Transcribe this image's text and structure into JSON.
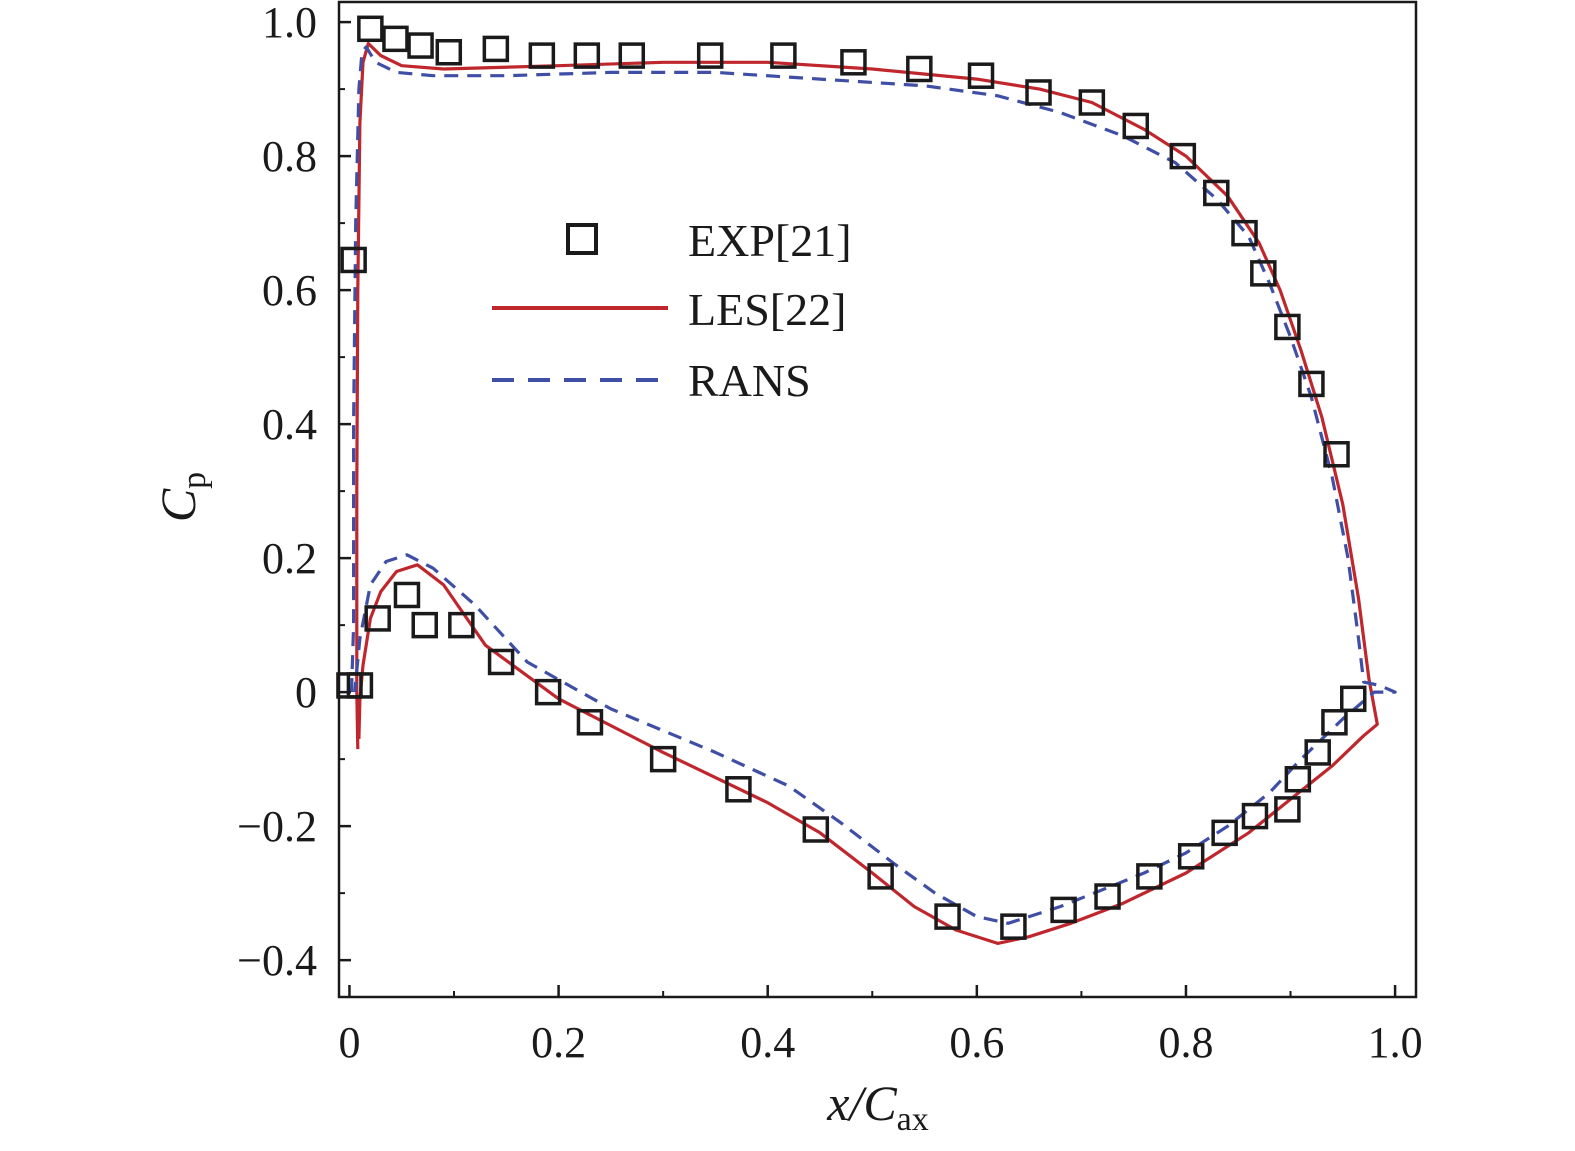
{
  "chart_data": {
    "type": "line",
    "xlabel": {
      "main": "x/C",
      "sub": "ax"
    },
    "ylabel": {
      "main": "C",
      "sub": "p"
    },
    "xlim": [
      -0.01,
      1.02
    ],
    "ylim": [
      -0.455,
      1.03
    ],
    "xticks": [
      0,
      0.2,
      0.4,
      0.6,
      0.8,
      1.0
    ],
    "xtick_labels": [
      "0",
      "0.2",
      "0.4",
      "0.6",
      "0.8",
      "1.0"
    ],
    "yticks": [
      -0.4,
      -0.2,
      0,
      0.2,
      0.4,
      0.6,
      0.8,
      1.0
    ],
    "ytick_labels": [
      "−0.4",
      "−0.2",
      "0",
      "0.2",
      "0.4",
      "0.6",
      "0.8",
      "1.0"
    ],
    "grid": false,
    "legend_position": "upper-center",
    "legend": [
      {
        "name": "EXP[21]",
        "style": "square-marker"
      },
      {
        "name": "LES[22]",
        "style": "solid-line"
      },
      {
        "name": "RANS",
        "style": "dashed-line"
      }
    ],
    "colors": {
      "exp": "#1a1a1a",
      "les": "#c0272d",
      "rans": "#3f4fa6",
      "axes": "#1a1a1a"
    },
    "series": [
      {
        "name": "EXP[21]",
        "kind": "scatter",
        "points": [
          [
            0.02,
            0.99
          ],
          [
            0.044,
            0.975
          ],
          [
            0.068,
            0.965
          ],
          [
            0.095,
            0.955
          ],
          [
            0.14,
            0.96
          ],
          [
            0.184,
            0.95
          ],
          [
            0.227,
            0.95
          ],
          [
            0.27,
            0.95
          ],
          [
            0.345,
            0.95
          ],
          [
            0.415,
            0.95
          ],
          [
            0.482,
            0.94
          ],
          [
            0.545,
            0.93
          ],
          [
            0.604,
            0.92
          ],
          [
            0.659,
            0.895
          ],
          [
            0.71,
            0.88
          ],
          [
            0.752,
            0.845
          ],
          [
            0.797,
            0.8
          ],
          [
            0.829,
            0.745
          ],
          [
            0.856,
            0.685
          ],
          [
            0.874,
            0.625
          ],
          [
            0.897,
            0.545
          ],
          [
            0.92,
            0.46
          ],
          [
            0.944,
            0.355
          ],
          [
            0.004,
            0.645
          ],
          [
            0.0,
            0.01
          ],
          [
            0.01,
            0.01
          ],
          [
            0.027,
            0.11
          ],
          [
            0.055,
            0.145
          ],
          [
            0.072,
            0.1
          ],
          [
            0.107,
            0.1
          ],
          [
            0.145,
            0.045
          ],
          [
            0.19,
            0.0
          ],
          [
            0.23,
            -0.045
          ],
          [
            0.3,
            -0.1
          ],
          [
            0.372,
            -0.145
          ],
          [
            0.446,
            -0.205
          ],
          [
            0.508,
            -0.275
          ],
          [
            0.572,
            -0.335
          ],
          [
            0.635,
            -0.35
          ],
          [
            0.683,
            -0.325
          ],
          [
            0.725,
            -0.305
          ],
          [
            0.765,
            -0.275
          ],
          [
            0.805,
            -0.245
          ],
          [
            0.837,
            -0.21
          ],
          [
            0.866,
            -0.185
          ],
          [
            0.897,
            -0.175
          ],
          [
            0.907,
            -0.13
          ],
          [
            0.926,
            -0.09
          ],
          [
            0.942,
            -0.045
          ],
          [
            0.96,
            -0.01
          ]
        ]
      },
      {
        "name": "LES[22]",
        "kind": "line",
        "points": [
          [
            0.008,
            -0.085
          ],
          [
            0.007,
            0.0
          ],
          [
            0.007,
            0.3
          ],
          [
            0.008,
            0.6
          ],
          [
            0.01,
            0.85
          ],
          [
            0.013,
            0.94
          ],
          [
            0.018,
            0.968
          ],
          [
            0.03,
            0.95
          ],
          [
            0.05,
            0.935
          ],
          [
            0.09,
            0.93
          ],
          [
            0.2,
            0.935
          ],
          [
            0.3,
            0.94
          ],
          [
            0.4,
            0.94
          ],
          [
            0.5,
            0.93
          ],
          [
            0.6,
            0.915
          ],
          [
            0.66,
            0.9
          ],
          [
            0.71,
            0.88
          ],
          [
            0.76,
            0.84
          ],
          [
            0.8,
            0.8
          ],
          [
            0.84,
            0.74
          ],
          [
            0.87,
            0.67
          ],
          [
            0.89,
            0.6
          ],
          [
            0.91,
            0.51
          ],
          [
            0.93,
            0.41
          ],
          [
            0.95,
            0.28
          ],
          [
            0.965,
            0.14
          ],
          [
            0.975,
            0.02
          ],
          [
            0.983,
            -0.048
          ],
          [
            0.97,
            -0.065
          ],
          [
            0.94,
            -0.11
          ],
          [
            0.9,
            -0.16
          ],
          [
            0.86,
            -0.21
          ],
          [
            0.8,
            -0.27
          ],
          [
            0.74,
            -0.315
          ],
          [
            0.69,
            -0.345
          ],
          [
            0.65,
            -0.365
          ],
          [
            0.62,
            -0.375
          ],
          [
            0.58,
            -0.355
          ],
          [
            0.54,
            -0.32
          ],
          [
            0.5,
            -0.27
          ],
          [
            0.45,
            -0.21
          ],
          [
            0.4,
            -0.165
          ],
          [
            0.3,
            -0.09
          ],
          [
            0.2,
            -0.01
          ],
          [
            0.13,
            0.07
          ],
          [
            0.09,
            0.16
          ],
          [
            0.065,
            0.19
          ],
          [
            0.045,
            0.18
          ],
          [
            0.03,
            0.15
          ],
          [
            0.02,
            0.11
          ],
          [
            0.013,
            0.04
          ],
          [
            0.01,
            -0.01
          ],
          [
            0.009,
            -0.07
          ]
        ]
      },
      {
        "name": "RANS",
        "kind": "line",
        "points": [
          [
            0.002,
            0.0
          ],
          [
            0.004,
            0.1
          ],
          [
            0.004,
            0.4
          ],
          [
            0.006,
            0.7
          ],
          [
            0.009,
            0.9
          ],
          [
            0.012,
            0.955
          ],
          [
            0.016,
            0.963
          ],
          [
            0.025,
            0.94
          ],
          [
            0.045,
            0.925
          ],
          [
            0.08,
            0.92
          ],
          [
            0.15,
            0.92
          ],
          [
            0.25,
            0.925
          ],
          [
            0.35,
            0.925
          ],
          [
            0.45,
            0.915
          ],
          [
            0.55,
            0.905
          ],
          [
            0.62,
            0.89
          ],
          [
            0.68,
            0.865
          ],
          [
            0.74,
            0.83
          ],
          [
            0.79,
            0.79
          ],
          [
            0.83,
            0.735
          ],
          [
            0.86,
            0.68
          ],
          [
            0.88,
            0.61
          ],
          [
            0.9,
            0.53
          ],
          [
            0.92,
            0.44
          ],
          [
            0.94,
            0.32
          ],
          [
            0.955,
            0.2
          ],
          [
            0.965,
            0.08
          ],
          [
            0.97,
            0.015
          ],
          [
            0.985,
            0.01
          ],
          [
            1.0,
            0.0
          ],
          [
            0.98,
            0.0
          ],
          [
            0.95,
            -0.04
          ],
          [
            0.91,
            -0.1
          ],
          [
            0.88,
            -0.15
          ],
          [
            0.84,
            -0.2
          ],
          [
            0.8,
            -0.24
          ],
          [
            0.76,
            -0.27
          ],
          [
            0.72,
            -0.295
          ],
          [
            0.68,
            -0.32
          ],
          [
            0.65,
            -0.335
          ],
          [
            0.63,
            -0.345
          ],
          [
            0.6,
            -0.335
          ],
          [
            0.56,
            -0.3
          ],
          [
            0.52,
            -0.255
          ],
          [
            0.47,
            -0.195
          ],
          [
            0.42,
            -0.14
          ],
          [
            0.35,
            -0.09
          ],
          [
            0.25,
            -0.025
          ],
          [
            0.17,
            0.045
          ],
          [
            0.12,
            0.13
          ],
          [
            0.08,
            0.185
          ],
          [
            0.055,
            0.205
          ],
          [
            0.035,
            0.195
          ],
          [
            0.02,
            0.16
          ],
          [
            0.01,
            0.08
          ],
          [
            0.005,
            0.0
          ]
        ]
      }
    ]
  }
}
